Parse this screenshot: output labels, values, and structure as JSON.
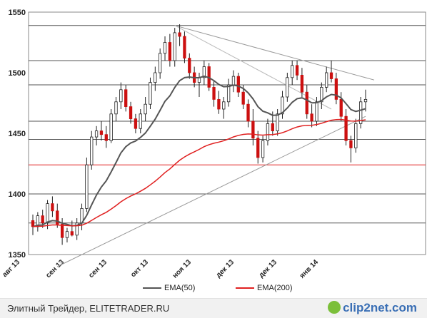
{
  "chart_data": {
    "type": "candlestick",
    "y_ticks": [
      1350,
      1400,
      1450,
      1500,
      1550
    ],
    "ylim": [
      1350,
      1550
    ],
    "x_tick_labels": [
      "авг 13",
      "сен 13",
      "сен 13",
      "окт 13",
      "ноя 13",
      "дек 13",
      "дек 13",
      "янв 14"
    ],
    "legend": [
      {
        "name": "EMA(50)",
        "color": "#555555"
      },
      {
        "name": "EMA(200)",
        "color": "#e02020"
      }
    ],
    "up_color": "#ffffff",
    "down_color": "#cc1010",
    "h_levels": [
      1376,
      1400,
      1424,
      1445,
      1460,
      1490,
      1510,
      1539
    ],
    "red_level": 1424,
    "ohlc": [
      [
        1378,
        1383,
        1366,
        1373
      ],
      [
        1373,
        1385,
        1369,
        1382
      ],
      [
        1382,
        1387,
        1372,
        1376
      ],
      [
        1376,
        1395,
        1371,
        1392
      ],
      [
        1392,
        1398,
        1381,
        1386
      ],
      [
        1386,
        1392,
        1372,
        1375
      ],
      [
        1375,
        1380,
        1358,
        1364
      ],
      [
        1364,
        1372,
        1360,
        1369
      ],
      [
        1369,
        1378,
        1365,
        1366
      ],
      [
        1366,
        1380,
        1362,
        1376
      ],
      [
        1376,
        1392,
        1370,
        1388
      ],
      [
        1388,
        1430,
        1385,
        1424
      ],
      [
        1424,
        1452,
        1420,
        1447
      ],
      [
        1447,
        1456,
        1440,
        1452
      ],
      [
        1452,
        1460,
        1444,
        1449
      ],
      [
        1449,
        1456,
        1438,
        1444
      ],
      [
        1444,
        1470,
        1442,
        1466
      ],
      [
        1466,
        1480,
        1460,
        1476
      ],
      [
        1476,
        1492,
        1470,
        1486
      ],
      [
        1486,
        1490,
        1468,
        1472
      ],
      [
        1472,
        1476,
        1458,
        1462
      ],
      [
        1462,
        1466,
        1450,
        1454
      ],
      [
        1454,
        1470,
        1450,
        1466
      ],
      [
        1466,
        1480,
        1460,
        1474
      ],
      [
        1474,
        1496,
        1470,
        1492
      ],
      [
        1492,
        1505,
        1485,
        1500
      ],
      [
        1500,
        1520,
        1495,
        1516
      ],
      [
        1516,
        1530,
        1510,
        1525
      ],
      [
        1525,
        1532,
        1505,
        1510
      ],
      [
        1510,
        1537,
        1505,
        1533
      ],
      [
        1533,
        1540,
        1522,
        1530
      ],
      [
        1530,
        1534,
        1508,
        1512
      ],
      [
        1512,
        1516,
        1495,
        1500
      ],
      [
        1500,
        1505,
        1488,
        1492
      ],
      [
        1492,
        1500,
        1480,
        1496
      ],
      [
        1496,
        1510,
        1490,
        1505
      ],
      [
        1505,
        1508,
        1485,
        1488
      ],
      [
        1488,
        1494,
        1472,
        1478
      ],
      [
        1478,
        1485,
        1466,
        1470
      ],
      [
        1470,
        1480,
        1462,
        1476
      ],
      [
        1476,
        1495,
        1472,
        1490
      ],
      [
        1490,
        1502,
        1484,
        1497
      ],
      [
        1497,
        1500,
        1480,
        1484
      ],
      [
        1484,
        1490,
        1470,
        1474
      ],
      [
        1474,
        1478,
        1455,
        1460
      ],
      [
        1460,
        1470,
        1440,
        1446
      ],
      [
        1446,
        1452,
        1425,
        1430
      ],
      [
        1430,
        1448,
        1426,
        1444
      ],
      [
        1444,
        1462,
        1440,
        1458
      ],
      [
        1458,
        1468,
        1448,
        1452
      ],
      [
        1452,
        1470,
        1448,
        1466
      ],
      [
        1466,
        1485,
        1462,
        1480
      ],
      [
        1480,
        1500,
        1476,
        1496
      ],
      [
        1496,
        1510,
        1490,
        1506
      ],
      [
        1506,
        1510,
        1494,
        1498
      ],
      [
        1498,
        1504,
        1480,
        1484
      ],
      [
        1484,
        1490,
        1462,
        1466
      ],
      [
        1466,
        1474,
        1455,
        1460
      ],
      [
        1460,
        1480,
        1456,
        1476
      ],
      [
        1476,
        1492,
        1470,
        1488
      ],
      [
        1488,
        1505,
        1484,
        1500
      ],
      [
        1500,
        1510,
        1492,
        1495
      ],
      [
        1495,
        1500,
        1474,
        1478
      ],
      [
        1478,
        1484,
        1460,
        1464
      ],
      [
        1464,
        1470,
        1440,
        1444
      ],
      [
        1444,
        1448,
        1426,
        1438
      ],
      [
        1438,
        1462,
        1434,
        1458
      ],
      [
        1458,
        1480,
        1454,
        1476
      ],
      [
        1476,
        1486,
        1468,
        1478
      ]
    ]
  },
  "footer": {
    "source": "Элитный Трейдер, ELITETRADER.RU",
    "logo": "clip2net.com"
  }
}
